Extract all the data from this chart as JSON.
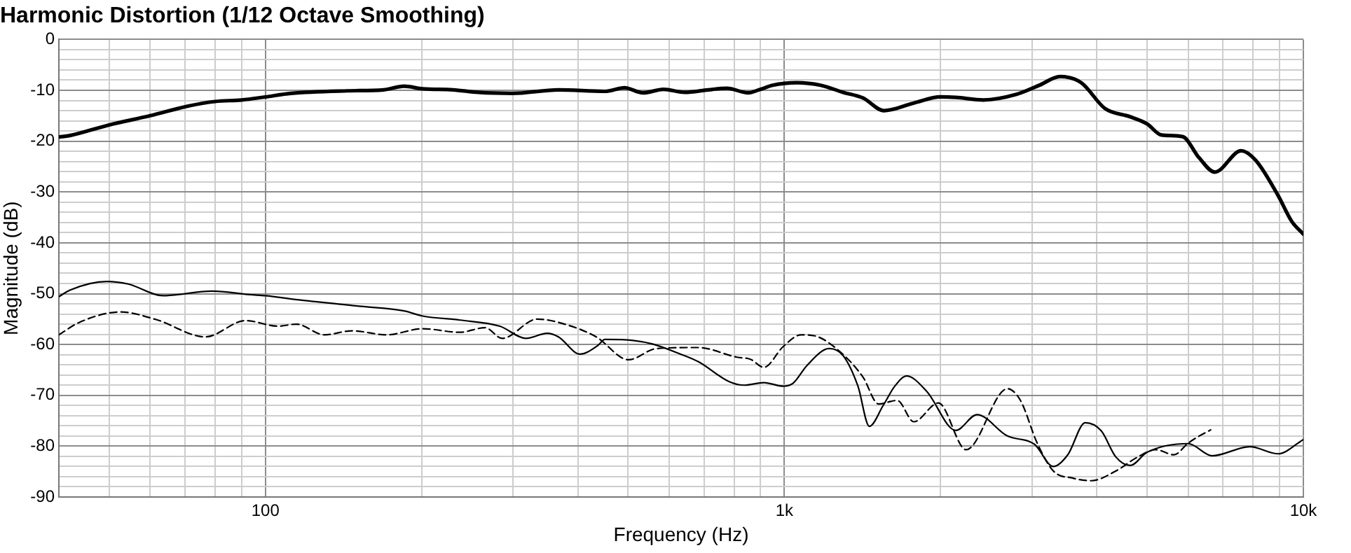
{
  "chart_data": {
    "type": "line",
    "title": "Harmonic Distortion (1/12 Octave Smoothing)",
    "xlabel": "Frequency (Hz)",
    "ylabel": "Magnitude (dB)",
    "log": "x",
    "grid": true,
    "legend": false,
    "marker": "none",
    "xlim": [
      40,
      10000
    ],
    "ylim": [
      -90,
      0
    ],
    "xticks": [
      {
        "value": 50,
        "label": null
      },
      {
        "value": 60,
        "label": null
      },
      {
        "value": 70,
        "label": null
      },
      {
        "value": 80,
        "label": null
      },
      {
        "value": 90,
        "label": null
      },
      {
        "value": 100,
        "label": "100"
      },
      {
        "value": 200,
        "label": null
      },
      {
        "value": 300,
        "label": null
      },
      {
        "value": 400,
        "label": null
      },
      {
        "value": 500,
        "label": null
      },
      {
        "value": 600,
        "label": null
      },
      {
        "value": 700,
        "label": null
      },
      {
        "value": 800,
        "label": null
      },
      {
        "value": 900,
        "label": null
      },
      {
        "value": 1000,
        "label": "1k"
      },
      {
        "value": 2000,
        "label": null
      },
      {
        "value": 3000,
        "label": null
      },
      {
        "value": 4000,
        "label": null
      },
      {
        "value": 5000,
        "label": null
      },
      {
        "value": 6000,
        "label": null
      },
      {
        "value": 7000,
        "label": null
      },
      {
        "value": 8000,
        "label": null
      },
      {
        "value": 9000,
        "label": null
      },
      {
        "value": 10000,
        "label": "10k"
      }
    ],
    "yticks": [
      -90,
      {
        "value": -88,
        "label": null
      },
      {
        "value": -86,
        "label": null
      },
      {
        "value": -84,
        "label": null
      },
      {
        "value": -82,
        "label": null
      },
      -80,
      {
        "value": -78,
        "label": null
      },
      {
        "value": -76,
        "label": null
      },
      {
        "value": -74,
        "label": null
      },
      {
        "value": -72,
        "label": null
      },
      -70,
      {
        "value": -68,
        "label": null
      },
      {
        "value": -66,
        "label": null
      },
      {
        "value": -64,
        "label": null
      },
      {
        "value": -62,
        "label": null
      },
      -60,
      {
        "value": -58,
        "label": null
      },
      {
        "value": -56,
        "label": null
      },
      {
        "value": -54,
        "label": null
      },
      {
        "value": -52,
        "label": null
      },
      -50,
      {
        "value": -48,
        "label": null
      },
      {
        "value": -46,
        "label": null
      },
      {
        "value": -44,
        "label": null
      },
      {
        "value": -42,
        "label": null
      },
      -40,
      {
        "value": -38,
        "label": null
      },
      {
        "value": -36,
        "label": null
      },
      {
        "value": -34,
        "label": null
      },
      {
        "value": -32,
        "label": null
      },
      -30,
      {
        "value": -28,
        "label": null
      },
      {
        "value": -26,
        "label": null
      },
      {
        "value": -24,
        "label": null
      },
      {
        "value": -22,
        "label": null
      },
      -20,
      {
        "value": -18,
        "label": null
      },
      {
        "value": -16,
        "label": null
      },
      {
        "value": -14,
        "label": null
      },
      {
        "value": -12,
        "label": null
      },
      -10,
      {
        "value": -8,
        "label": null
      },
      {
        "value": -6,
        "label": null
      },
      {
        "value": -4,
        "label": null
      },
      {
        "value": -2,
        "label": null
      },
      0
    ],
    "series": [
      {
        "color": "#000000",
        "line_style": "solid",
        "x": [
          40,
          42,
          50,
          60,
          71,
          80,
          90,
          100,
          112,
          144,
          169,
          185,
          201,
          230,
          257,
          299,
          367,
          451,
          492,
          534,
          585,
          643,
          714,
          775,
          852,
          894,
          950,
          1057,
          1174,
          1298,
          1417,
          1555,
          1776,
          2000,
          2140,
          2417,
          2800,
          3100,
          3396,
          3732,
          4150,
          4635,
          5000,
          5330,
          5850,
          6300,
          6750,
          7590,
          8100,
          8940,
          9500,
          10000
        ],
        "values": [
          -19.2,
          -18.9,
          -16.8,
          -15,
          -13.1,
          -12.2,
          -11.9,
          -11.3,
          -10.6,
          -10.1,
          -9.9,
          -9.2,
          -9.7,
          -9.9,
          -10.4,
          -10.6,
          -9.9,
          -10.2,
          -9.5,
          -10.5,
          -9.8,
          -10.4,
          -9.9,
          -9.6,
          -10.5,
          -9.9,
          -9,
          -8.5,
          -9,
          -10.4,
          -11.5,
          -14,
          -12.5,
          -11.3,
          -11.4,
          -11.9,
          -10.8,
          -9,
          -7.3,
          -8.5,
          -13.6,
          -15.2,
          -16.6,
          -18.8,
          -19.1,
          -23.3,
          -26.1,
          -21.9,
          -23.8,
          -30.7,
          -35.8,
          -38.3
        ]
      },
      {
        "color": "#000000",
        "line_style": "solid",
        "x": [
          40,
          42,
          49.5,
          54.4,
          63.5,
          79,
          93.4,
          100,
          117.6,
          153,
          185,
          201,
          237,
          283,
          318,
          349,
          367,
          404,
          437,
          451,
          511,
          557,
          631,
          683,
          783,
          838,
          913,
          995,
          1040,
          1106,
          1220,
          1298,
          1386,
          1458,
          1550,
          1632,
          1720,
          1880,
          2140,
          2350,
          2690,
          3030,
          3300,
          3516,
          3800,
          4080,
          4350,
          4640,
          5000,
          6000,
          6670,
          7890,
          8940,
          10000
        ],
        "values": [
          -50.6,
          -49.3,
          -47.6,
          -48.1,
          -50.4,
          -49.5,
          -50.2,
          -50.4,
          -51.3,
          -52.5,
          -53.4,
          -54.4,
          -55.2,
          -56.4,
          -58.8,
          -57.8,
          -58.5,
          -61.9,
          -60.2,
          -59,
          -59.2,
          -59.9,
          -61.9,
          -63.4,
          -67.3,
          -68,
          -67.5,
          -68.2,
          -67.6,
          -64.1,
          -60.8,
          -62.2,
          -68.2,
          -76.1,
          -72,
          -68.2,
          -66.2,
          -69.2,
          -76.9,
          -73.8,
          -78,
          -79.6,
          -84,
          -81.7,
          -75.4,
          -77,
          -82.1,
          -83.8,
          -81.2,
          -79.5,
          -81.9,
          -80.1,
          -81.5,
          -78.7
        ]
      },
      {
        "color": "#000000",
        "line_style": "dashed",
        "x": [
          40,
          43.7,
          52.6,
          61.6,
          76.6,
          91.6,
          105.8,
          114.7,
          130,
          147,
          171,
          201,
          237,
          265,
          286,
          334,
          383,
          434,
          501,
          567,
          683,
          810,
          860,
          913,
          995,
          1077,
          1144,
          1276,
          1417,
          1519,
          1650,
          1776,
          1980,
          2240,
          2690,
          2850,
          3070,
          3300,
          3600,
          3900,
          4350,
          4800,
          5200,
          5630,
          6000,
          6300,
          6630
        ],
        "values": [
          -58.1,
          -55.7,
          -53.6,
          -55.1,
          -58.5,
          -55.3,
          -56.4,
          -56,
          -58.1,
          -57.3,
          -58.1,
          -56.9,
          -57.6,
          -56.7,
          -58.8,
          -55,
          -56.2,
          -58.5,
          -63,
          -60.8,
          -60.6,
          -62.5,
          -62.9,
          -64.5,
          -60.4,
          -58.1,
          -58.3,
          -61.3,
          -66.4,
          -71.7,
          -71,
          -75.2,
          -71.5,
          -80.7,
          -68.7,
          -71,
          -79.4,
          -84.9,
          -86.3,
          -86.8,
          -84.9,
          -82.1,
          -80.7,
          -81.7,
          -79.4,
          -78,
          -76.8
        ]
      }
    ]
  }
}
